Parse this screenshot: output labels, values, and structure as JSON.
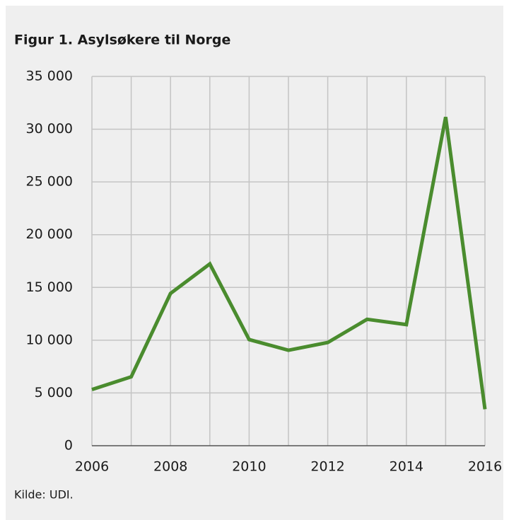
{
  "chart_data": {
    "type": "line",
    "title": "Figur 1. Asylsøkere til Norge",
    "source": "Kilde: UDI.",
    "x": [
      2006,
      2007,
      2008,
      2009,
      2010,
      2011,
      2012,
      2013,
      2014,
      2015,
      2016
    ],
    "values": [
      5320,
      6530,
      14430,
      17230,
      10060,
      9050,
      9780,
      11980,
      11480,
      31150,
      3460
    ],
    "color": "#4a8c2e",
    "xlim": [
      2006,
      2016
    ],
    "xticks": [
      2006,
      2008,
      2010,
      2012,
      2014,
      2016
    ],
    "xgrid": [
      2006,
      2007,
      2008,
      2009,
      2010,
      2011,
      2012,
      2013,
      2014,
      2015,
      2016
    ],
    "ylim": [
      0,
      35000
    ],
    "yticks": [
      0,
      {
        "value": 5000,
        "label": "5 000"
      },
      {
        "value": 10000,
        "label": "10 000"
      },
      {
        "value": 15000,
        "label": "15 000"
      },
      {
        "value": 20000,
        "label": "20 000"
      },
      {
        "value": 25000,
        "label": "25 000"
      },
      {
        "value": 30000,
        "label": "30 000"
      },
      {
        "value": 35000,
        "label": "35 000"
      }
    ],
    "grid": true
  }
}
